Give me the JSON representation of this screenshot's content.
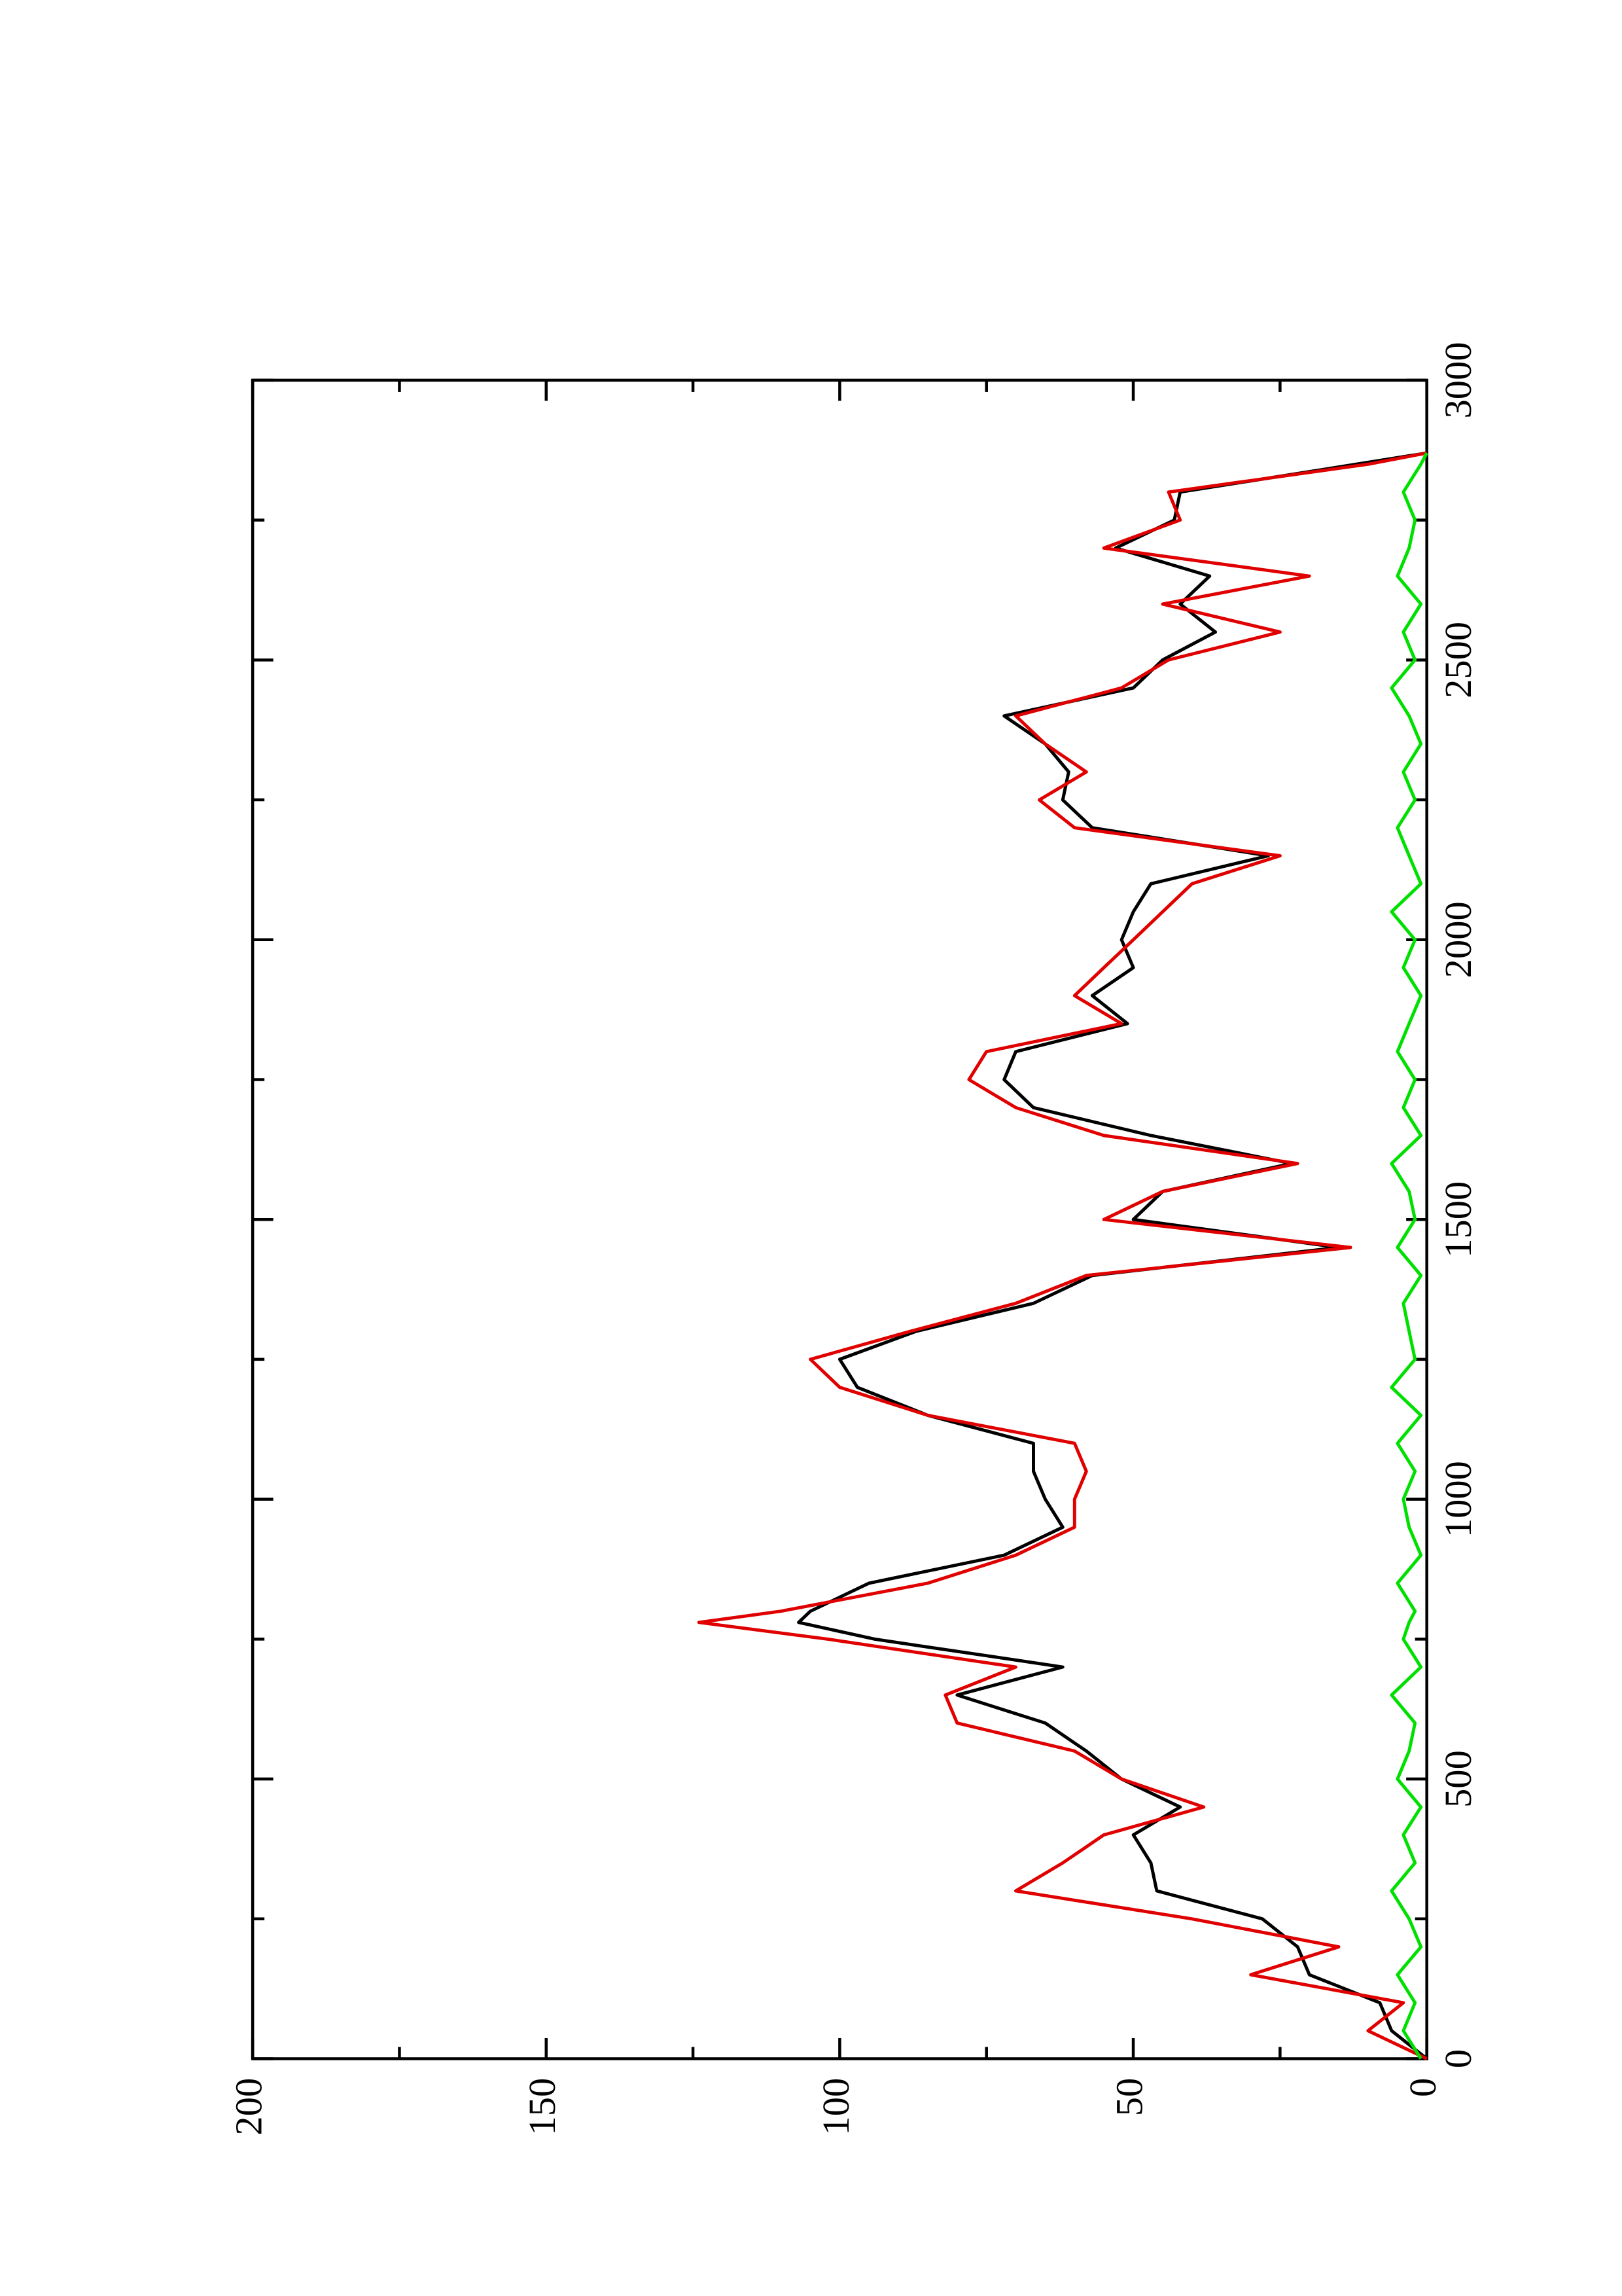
{
  "chart_data": {
    "type": "line",
    "x": [
      0,
      50,
      100,
      150,
      200,
      250,
      300,
      350,
      400,
      450,
      500,
      550,
      600,
      650,
      700,
      750,
      780,
      800,
      850,
      900,
      950,
      1000,
      1050,
      1100,
      1150,
      1200,
      1250,
      1300,
      1350,
      1400,
      1450,
      1500,
      1550,
      1600,
      1650,
      1700,
      1750,
      1800,
      1850,
      1900,
      1950,
      2000,
      2050,
      2100,
      2150,
      2200,
      2250,
      2300,
      2350,
      2400,
      2450,
      2500,
      2550,
      2600,
      2650,
      2700,
      2750,
      2800,
      2850,
      2870
    ],
    "series": [
      {
        "name": "black",
        "color": "#000000",
        "values": [
          0,
          6,
          8,
          20,
          22,
          28,
          46,
          47,
          50,
          42,
          52,
          58,
          65,
          80,
          62,
          94,
          107,
          105,
          95,
          72,
          62,
          65,
          67,
          67,
          85,
          97,
          100,
          87,
          67,
          57,
          15,
          50,
          45,
          23,
          47,
          67,
          72,
          70,
          51,
          57,
          50,
          52,
          50,
          47,
          27,
          57,
          62,
          61,
          65,
          72,
          50,
          45,
          36,
          42,
          37,
          53,
          43,
          42,
          12,
          0
        ]
      },
      {
        "name": "red",
        "color": "#e00000",
        "values": [
          0,
          10,
          4,
          30,
          15,
          40,
          70,
          62,
          55,
          38,
          52,
          60,
          80,
          82,
          70,
          102,
          124,
          110,
          85,
          70,
          60,
          60,
          58,
          60,
          85,
          100,
          105,
          88,
          70,
          58,
          13,
          55,
          45,
          22,
          55,
          70,
          78,
          75,
          52,
          60,
          55,
          50,
          45,
          40,
          25,
          60,
          66,
          58,
          65,
          70,
          52,
          44,
          25,
          45,
          20,
          55,
          42,
          44,
          10,
          0
        ]
      },
      {
        "name": "green",
        "color": "#00e000",
        "values": [
          1,
          4,
          2,
          5,
          1,
          3,
          6,
          2,
          4,
          1,
          5,
          3,
          2,
          6,
          1,
          4,
          3,
          2,
          5,
          1,
          3,
          4,
          2,
          5,
          1,
          6,
          2,
          3,
          4,
          1,
          5,
          2,
          3,
          6,
          1,
          4,
          2,
          5,
          3,
          1,
          4,
          2,
          6,
          1,
          3,
          5,
          2,
          4,
          1,
          3,
          6,
          2,
          4,
          1,
          5,
          3,
          2,
          4,
          1,
          0
        ]
      }
    ],
    "xlim": [
      0,
      3000
    ],
    "xticks": [
      0,
      500,
      1000,
      1500,
      2000,
      2500,
      3000
    ],
    "xticks_minor": [
      250,
      750,
      1250,
      1750,
      2250,
      2750
    ],
    "ylim": [
      0,
      200
    ],
    "yticks": [
      0,
      50,
      100,
      150,
      200
    ],
    "yticks_minor": [
      25,
      75,
      125,
      175
    ]
  }
}
